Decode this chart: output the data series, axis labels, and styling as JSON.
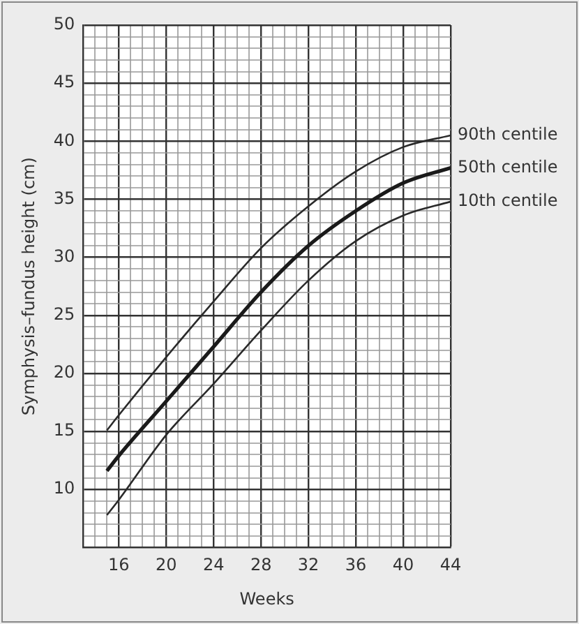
{
  "chart_data": {
    "type": "line",
    "xlabel": "Weeks",
    "ylabel": "Symphysis–fundus height (cm)",
    "x": [
      15,
      16,
      20,
      24,
      28,
      32,
      36,
      40,
      44
    ],
    "series": [
      {
        "name": "90th centile",
        "color": "#2a2a2a",
        "values": [
          15.1,
          16.4,
          21.4,
          26.2,
          30.8,
          34.4,
          37.4,
          39.5,
          40.5
        ]
      },
      {
        "name": "50th centile",
        "color": "#1a1a1a",
        "values": [
          11.6,
          12.9,
          17.6,
          22.3,
          27.0,
          31.0,
          34.0,
          36.4,
          37.7
        ]
      },
      {
        "name": "10th centile",
        "color": "#2a2a2a",
        "values": [
          7.8,
          9.1,
          14.7,
          19.1,
          23.7,
          28.0,
          31.4,
          33.6,
          34.8
        ]
      }
    ],
    "xlim": [
      13,
      44
    ],
    "xticks": [
      {
        "value": 13,
        "label": null
      },
      {
        "value": 14,
        "label": null
      },
      {
        "value": 15,
        "label": null
      },
      16,
      {
        "value": 17,
        "label": null
      },
      {
        "value": 18,
        "label": null
      },
      {
        "value": 19,
        "label": null
      },
      20,
      {
        "value": 21,
        "label": null
      },
      {
        "value": 22,
        "label": null
      },
      {
        "value": 23,
        "label": null
      },
      24,
      {
        "value": 25,
        "label": null
      },
      {
        "value": 26,
        "label": null
      },
      {
        "value": 27,
        "label": null
      },
      28,
      {
        "value": 29,
        "label": null
      },
      {
        "value": 30,
        "label": null
      },
      {
        "value": 31,
        "label": null
      },
      32,
      {
        "value": 33,
        "label": null
      },
      {
        "value": 34,
        "label": null
      },
      {
        "value": 35,
        "label": null
      },
      36,
      {
        "value": 37,
        "label": null
      },
      {
        "value": 38,
        "label": null
      },
      {
        "value": 39,
        "label": null
      },
      40,
      {
        "value": 41,
        "label": null
      },
      {
        "value": 42,
        "label": null
      },
      {
        "value": 43,
        "label": null
      },
      44
    ],
    "ylim": [
      5,
      50
    ],
    "yticks": [
      {
        "value": 5,
        "label": null
      },
      {
        "value": 6,
        "label": null
      },
      {
        "value": 7,
        "label": null
      },
      {
        "value": 8,
        "label": null
      },
      {
        "value": 9,
        "label": null
      },
      10,
      {
        "value": 11,
        "label": null
      },
      {
        "value": 12,
        "label": null
      },
      {
        "value": 13,
        "label": null
      },
      {
        "value": 14,
        "label": null
      },
      15,
      {
        "value": 16,
        "label": null
      },
      {
        "value": 17,
        "label": null
      },
      {
        "value": 18,
        "label": null
      },
      {
        "value": 19,
        "label": null
      },
      20,
      {
        "value": 21,
        "label": null
      },
      {
        "value": 22,
        "label": null
      },
      {
        "value": 23,
        "label": null
      },
      {
        "value": 24,
        "label": null
      },
      25,
      {
        "value": 26,
        "label": null
      },
      {
        "value": 27,
        "label": null
      },
      {
        "value": 28,
        "label": null
      },
      {
        "value": 29,
        "label": null
      },
      30,
      {
        "value": 31,
        "label": null
      },
      {
        "value": 32,
        "label": null
      },
      {
        "value": 33,
        "label": null
      },
      {
        "value": 34,
        "label": null
      },
      35,
      {
        "value": 36,
        "label": null
      },
      {
        "value": 37,
        "label": null
      },
      {
        "value": 38,
        "label": null
      },
      {
        "value": 39,
        "label": null
      },
      40,
      {
        "value": 41,
        "label": null
      },
      {
        "value": 42,
        "label": null
      },
      {
        "value": 43,
        "label": null
      },
      {
        "value": 44,
        "label": null
      },
      45,
      {
        "value": 46,
        "label": null
      },
      {
        "value": 47,
        "label": null
      },
      {
        "value": 48,
        "label": null
      },
      {
        "value": 49,
        "label": null
      },
      50
    ],
    "grid": true,
    "legend": false,
    "marker": "none",
    "line_style": "solid"
  }
}
